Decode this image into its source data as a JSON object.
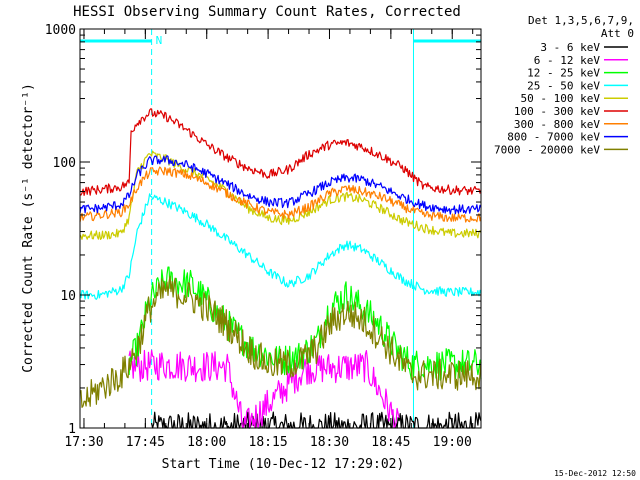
{
  "chart_data": {
    "type": "line",
    "title": "HESSI Observing Summary Count Rates, Corrected",
    "xlabel": "Start Time (10-Dec-12 17:29:02)",
    "ylabel": "Corrected Count Rate (s⁻¹ detector⁻¹)",
    "y_scale": "log",
    "ylim": [
      1,
      1000
    ],
    "y_ticks": [
      "1",
      "10",
      "100",
      "1000"
    ],
    "xlim_minutes": [
      0,
      98
    ],
    "x_ticks": [
      {
        "label": "17:30",
        "minute": 0.97
      },
      {
        "label": "17:45",
        "minute": 15.97
      },
      {
        "label": "18:00",
        "minute": 30.97
      },
      {
        "label": "18:15",
        "minute": 45.97
      },
      {
        "label": "18:30",
        "minute": 60.97
      },
      {
        "label": "18:45",
        "minute": 75.97
      },
      {
        "label": "19:00",
        "minute": 90.97
      }
    ],
    "legend": {
      "header_line1": "Det 1,3,5,6,7,9,",
      "header_line2": "Att 0",
      "placement": "right"
    },
    "annotations": {
      "night_marker": "N",
      "night_intervals_minutes": [
        [
          0,
          17.5
        ],
        [
          81.5,
          98
        ]
      ],
      "footer_stamp": "15-Dec-2012 12:50"
    },
    "series": [
      {
        "name": "3 - 6 keV",
        "color": "#000000",
        "x": [
          17.5,
          30,
          38,
          48,
          68,
          76,
          98
        ],
        "y": [
          1,
          1,
          1,
          1,
          1,
          1,
          1
        ]
      },
      {
        "name": "6 - 12 keV",
        "color": "#ff00ff",
        "x": [
          12,
          15,
          20,
          30,
          36,
          40,
          55,
          70,
          78
        ],
        "y": [
          2.9,
          2.9,
          3.0,
          2.9,
          2.9,
          1.0,
          2.8,
          2.9,
          1.0
        ]
      },
      {
        "name": "12 - 25 keV",
        "color": "#00ff00",
        "x": [
          12,
          14,
          17,
          21,
          27,
          31,
          36,
          42,
          49,
          54,
          58,
          61,
          65,
          69,
          73,
          77,
          81,
          85,
          90,
          98
        ],
        "y": [
          3,
          4,
          9,
          13,
          12,
          9,
          6,
          4,
          3.2,
          3.5,
          4.5,
          8,
          10,
          8,
          6,
          4,
          3,
          3,
          3,
          3
        ]
      },
      {
        "name": "25 - 50 keV",
        "color": "#00ffff",
        "x": [
          0,
          5,
          10,
          12,
          14,
          17,
          21,
          26,
          31,
          36,
          41,
          46,
          51,
          56,
          61,
          65,
          69,
          74,
          79,
          84,
          90,
          98
        ],
        "y": [
          10,
          10,
          11,
          14,
          30,
          55,
          50,
          42,
          34,
          26,
          20,
          15,
          12,
          14,
          20,
          24,
          22,
          17,
          13,
          11,
          10.5,
          10.5
        ]
      },
      {
        "name": "50 - 100 keV",
        "color": "#cccc00",
        "x": [
          0,
          5,
          10,
          12,
          14,
          17,
          21,
          26,
          31,
          36,
          41,
          46,
          51,
          56,
          61,
          65,
          69,
          74,
          79,
          84,
          90,
          98
        ],
        "y": [
          28,
          28,
          29,
          38,
          85,
          115,
          105,
          88,
          75,
          60,
          45,
          38,
          36,
          42,
          52,
          55,
          52,
          44,
          36,
          32,
          29,
          29
        ]
      },
      {
        "name": "100 - 300 keV",
        "color": "#dd0000",
        "x": [
          0,
          5,
          10,
          12,
          12.5,
          14,
          17,
          21,
          26,
          31,
          36,
          41,
          46,
          51,
          56,
          61,
          65,
          69,
          74,
          79,
          84,
          90,
          98
        ],
        "y": [
          60,
          62,
          65,
          70,
          170,
          200,
          235,
          220,
          175,
          135,
          108,
          90,
          80,
          88,
          115,
          135,
          140,
          130,
          110,
          90,
          65,
          62,
          60
        ]
      },
      {
        "name": "300 - 800 keV",
        "color": "#ff7f00",
        "x": [
          0,
          5,
          10,
          12,
          14,
          17,
          21,
          26,
          31,
          36,
          41,
          46,
          51,
          56,
          61,
          65,
          69,
          74,
          79,
          84,
          90,
          98
        ],
        "y": [
          38,
          40,
          42,
          48,
          65,
          84,
          86,
          80,
          70,
          58,
          48,
          42,
          40,
          46,
          58,
          63,
          60,
          54,
          46,
          40,
          38,
          38
        ]
      },
      {
        "name": "800 - 7000 keV",
        "color": "#0000ff",
        "x": [
          0,
          5,
          10,
          12,
          14,
          17,
          21,
          26,
          31,
          36,
          41,
          46,
          51,
          56,
          61,
          65,
          69,
          74,
          79,
          84,
          90,
          98
        ],
        "y": [
          44,
          45,
          48,
          56,
          80,
          102,
          104,
          95,
          82,
          68,
          56,
          50,
          49,
          58,
          70,
          76,
          74,
          64,
          54,
          47,
          44,
          44
        ]
      },
      {
        "name": "7000 - 20000 keV",
        "color": "#808000",
        "x": [
          0,
          5,
          10,
          12,
          14,
          17,
          21,
          26,
          31,
          36,
          41,
          46,
          51,
          54,
          58,
          61,
          65,
          69,
          73,
          77,
          81,
          85,
          90,
          98
        ],
        "y": [
          1.5,
          2,
          2.5,
          3,
          4,
          8,
          11,
          10,
          8,
          6,
          4,
          3,
          3,
          3.2,
          4,
          6,
          7.5,
          6.5,
          5,
          3.5,
          2.5,
          2.5,
          2.5,
          2.5
        ]
      }
    ]
  }
}
